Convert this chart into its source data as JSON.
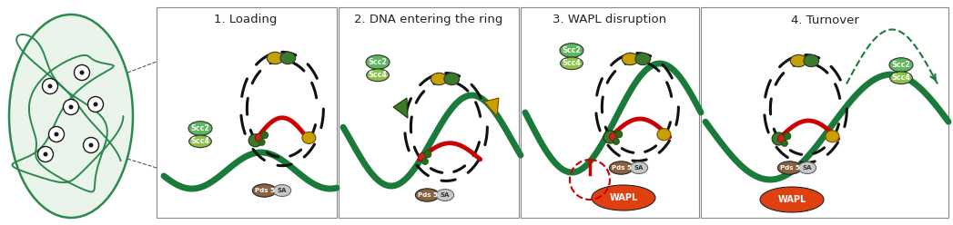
{
  "title_labels": [
    "1. Loading",
    "2. DNA entering the ring",
    "3. WAPL disruption",
    "4. Turnover"
  ],
  "bg_color": "#ffffff",
  "cell_color": "#2d8a4e",
  "dna_color": "#1a7a3a",
  "ring_color": "#1a1a1a",
  "scc2_color": "#5cb85c",
  "scc4_color": "#8bc34a",
  "kleisin_color": "#8B6340",
  "sa_color": "#c8c8c8",
  "head_amber_color": "#c8a000",
  "head_green_color": "#3a7a2a",
  "wapl_color": "#e04010",
  "red_dna_color": "#cc0000",
  "small_dot_color": "#cc2222",
  "small_green_dot": "#2a6a1a"
}
